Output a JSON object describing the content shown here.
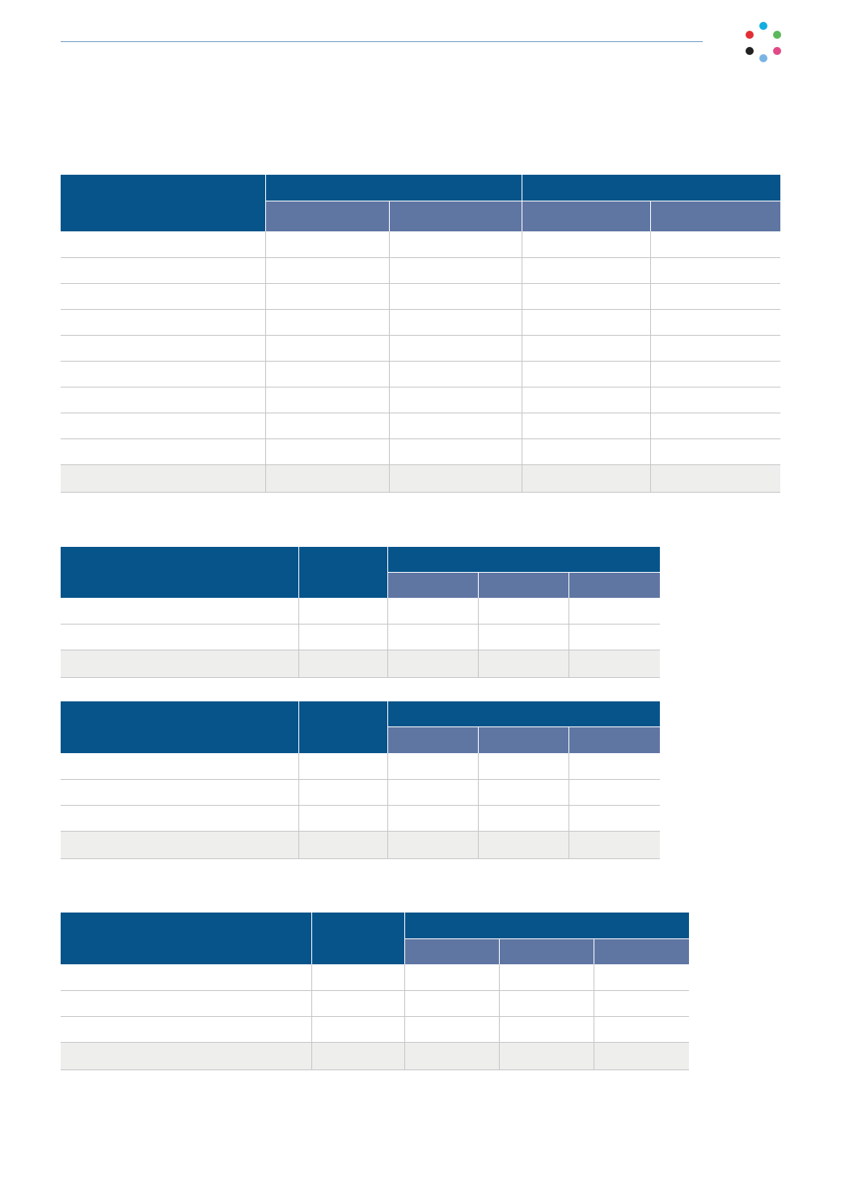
{
  "logo": {
    "dots": [
      {
        "name": "dot-cyan",
        "color": "#13aee0"
      },
      {
        "name": "dot-red",
        "color": "#e22f36"
      },
      {
        "name": "dot-green",
        "color": "#5cb85c"
      },
      {
        "name": "dot-black",
        "color": "#222222"
      },
      {
        "name": "dot-pink",
        "color": "#e04a86"
      },
      {
        "name": "dot-lightblue",
        "color": "#7ab4e4"
      }
    ]
  },
  "colors": {
    "header_dark": "#06548a",
    "header_light": "#5f76a3",
    "total_row": "#eeefed",
    "rule": "#6f9cc8"
  },
  "tables": [
    {
      "name": "table-1",
      "header_rows": 2,
      "body_rows": 9,
      "total_rows": 1,
      "columns": 5
    },
    {
      "name": "table-2",
      "header_rows": 2,
      "body_rows": 2,
      "total_rows": 1,
      "columns": 5
    },
    {
      "name": "table-3",
      "header_rows": 2,
      "body_rows": 3,
      "total_rows": 1,
      "columns": 5
    },
    {
      "name": "table-4",
      "header_rows": 2,
      "body_rows": 3,
      "total_rows": 1,
      "columns": 5
    }
  ]
}
